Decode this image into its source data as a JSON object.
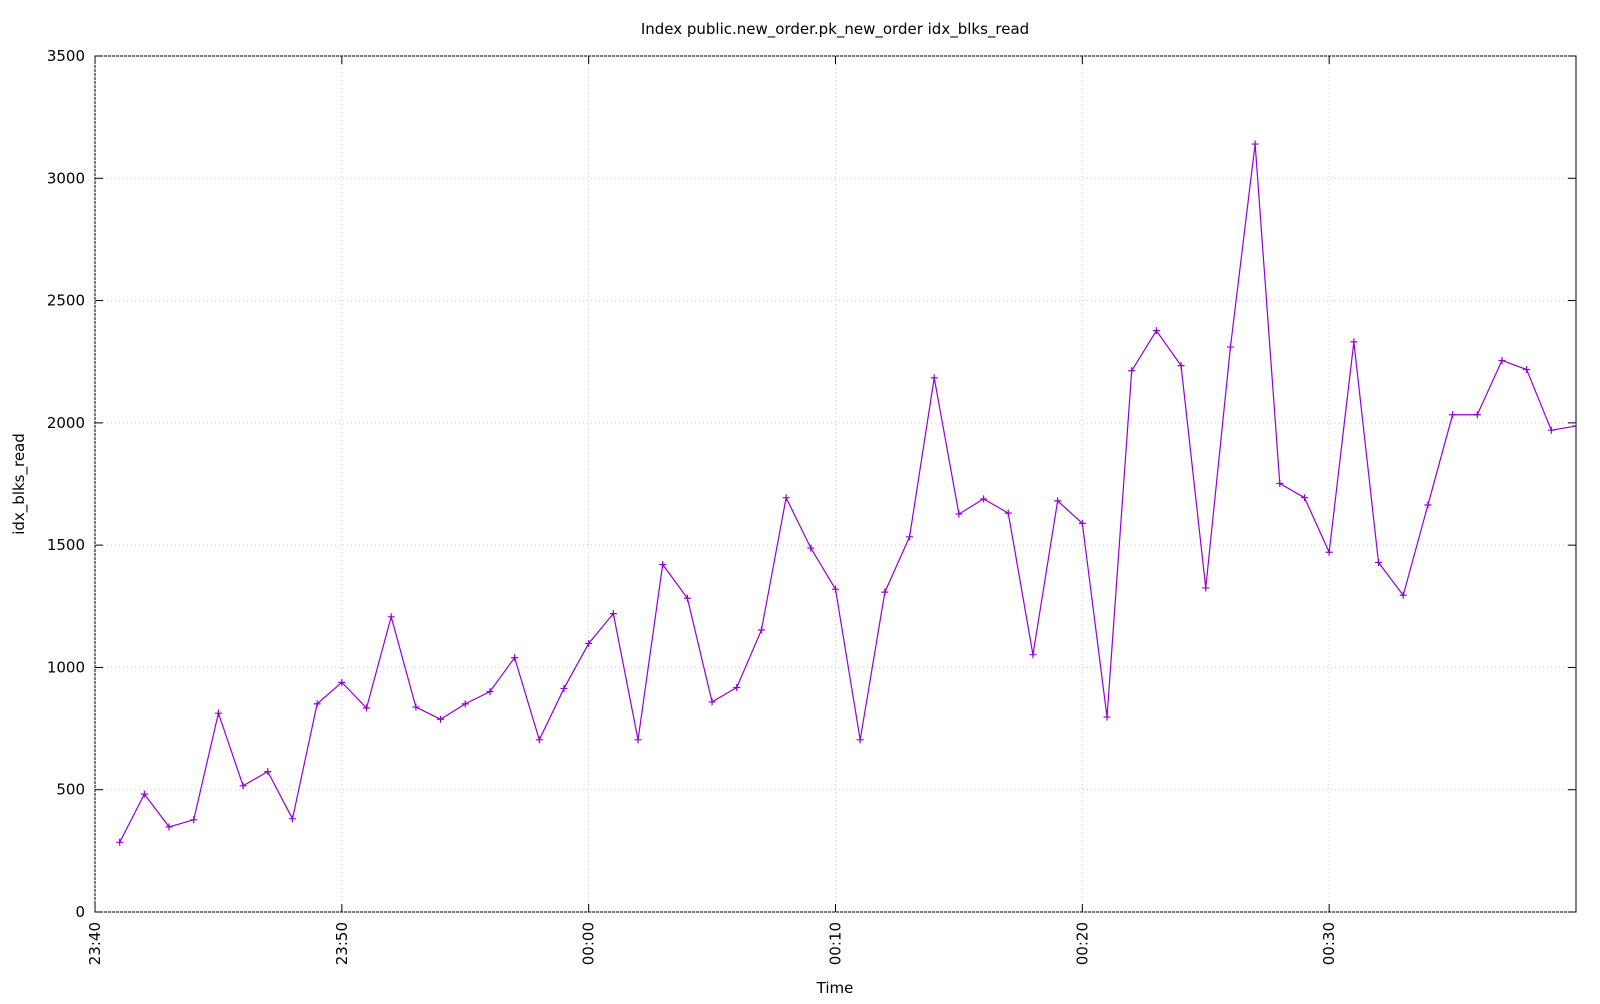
{
  "chart_data": {
    "type": "line",
    "title": "Index public.new_order.pk_new_order idx_blks_read",
    "x_label": "Time",
    "y_label": "idx_blks_read",
    "x": [
      "23:41",
      "23:42",
      "23:43",
      "23:44",
      "23:45",
      "23:46",
      "23:47",
      "23:48",
      "23:49",
      "23:50",
      "23:51",
      "23:52",
      "23:53",
      "23:54",
      "23:55",
      "23:56",
      "23:57",
      "23:58",
      "23:59",
      "00:00",
      "00:01",
      "00:02",
      "00:03",
      "00:04",
      "00:05",
      "00:06",
      "00:07",
      "00:08",
      "00:09",
      "00:10",
      "00:11",
      "00:12",
      "00:13",
      "00:14",
      "00:15",
      "00:16",
      "00:17",
      "00:18",
      "00:19",
      "00:20",
      "00:21",
      "00:22",
      "00:23",
      "00:24",
      "00:25",
      "00:26",
      "00:27",
      "00:28",
      "00:29",
      "00:30",
      "00:31",
      "00:32",
      "00:33",
      "00:34",
      "00:35",
      "00:36",
      "00:37",
      "00:38",
      "00:39",
      "00:40"
    ],
    "values": [
      285,
      482,
      348,
      377,
      813,
      516,
      574,
      381,
      851,
      939,
      834,
      1207,
      838,
      788,
      851,
      901,
      1040,
      704,
      914,
      1098,
      1220,
      704,
      1421,
      1283,
      859,
      918,
      1153,
      1694,
      1488,
      1320,
      704,
      1308,
      1534,
      2184,
      1627,
      1689,
      1631,
      1052,
      1681,
      1589,
      797,
      2213,
      2377,
      2234,
      1325,
      2310,
      3140,
      1752,
      1694,
      1471,
      2331,
      1429,
      1295,
      1664,
      2033,
      2033,
      2255,
      2218,
      1970,
      1987
    ],
    "color": "#9400d3",
    "xlim": [
      "23:40",
      "00:40"
    ],
    "xticks": [
      "23:40",
      "23:50",
      "00:00",
      "00:10",
      "00:20",
      "00:30"
    ],
    "ylim": [
      0,
      3500
    ],
    "yticks": [
      0,
      500,
      1000,
      1500,
      2000,
      2500,
      3000,
      3500
    ],
    "grid": true
  }
}
